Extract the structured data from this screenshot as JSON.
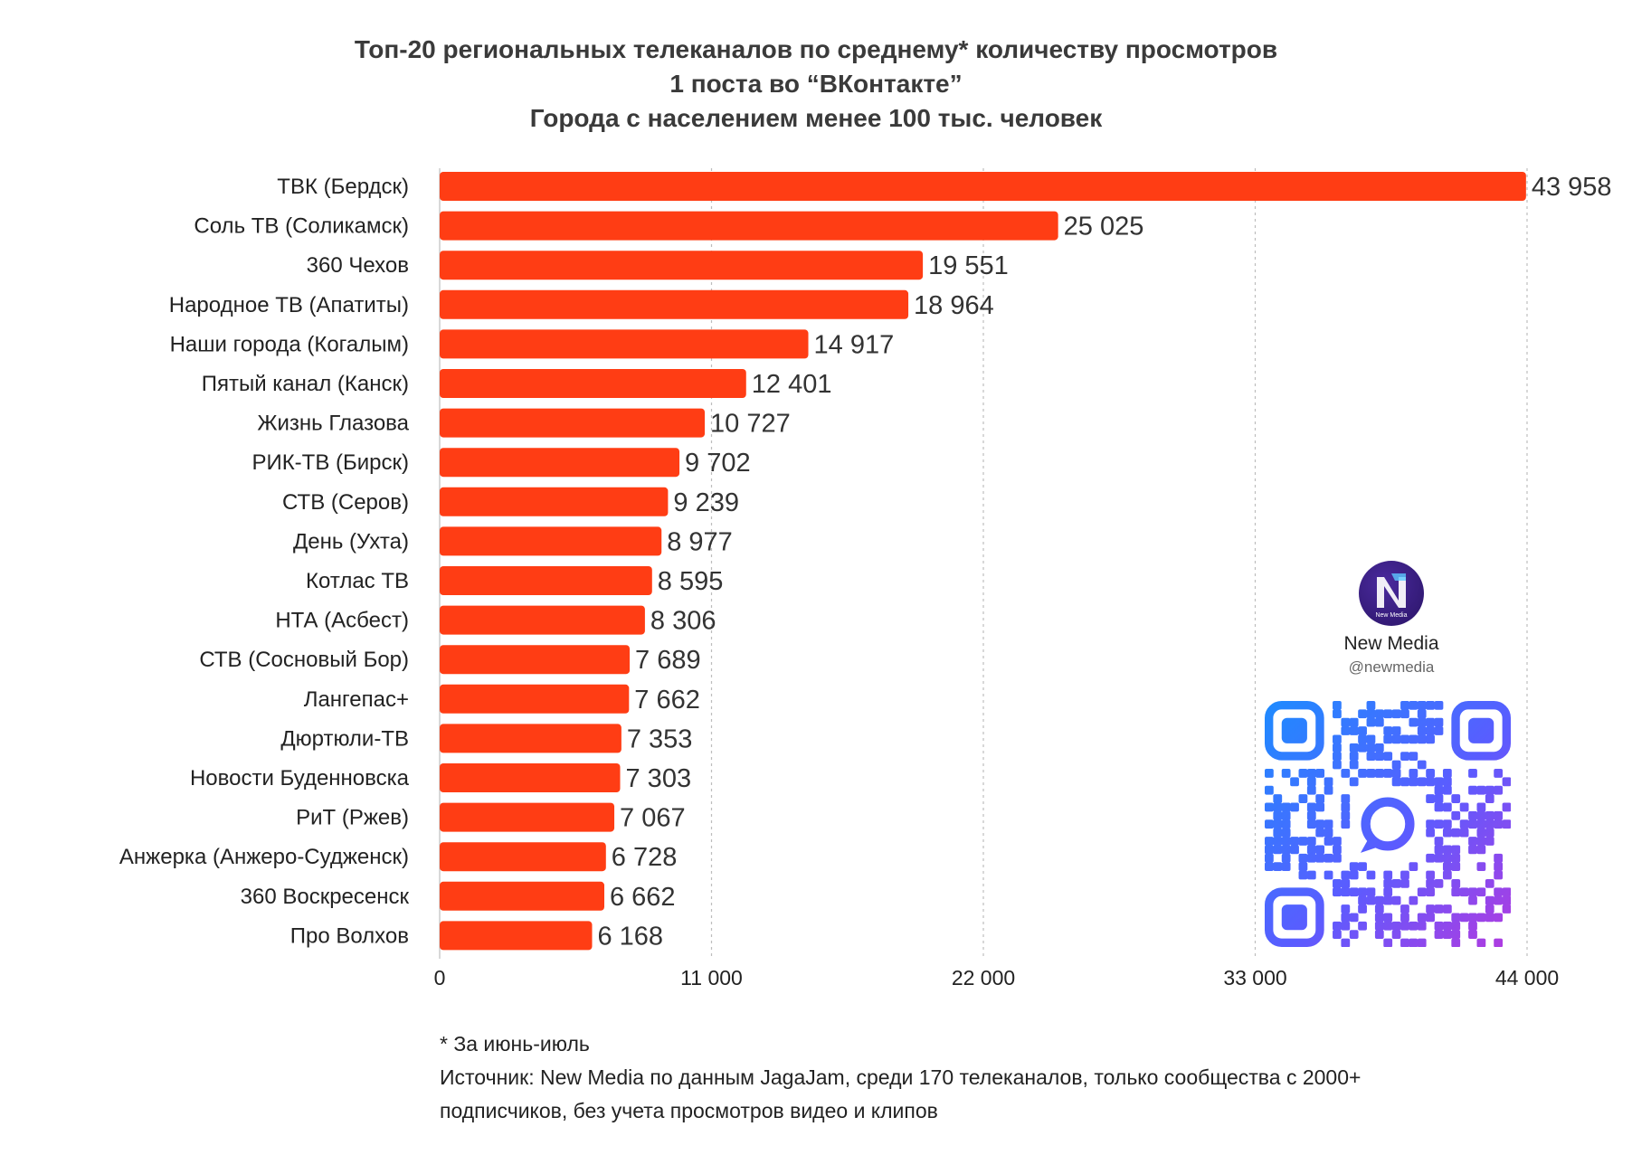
{
  "title": {
    "line1": "Топ-20 региональных телеканалов по среднему* количеству просмотров",
    "line2": "1 поста во “ВКонтакте”",
    "line3": "Города с населением менее 100 тыс. человек"
  },
  "chart_data": {
    "type": "bar",
    "orientation": "horizontal",
    "categories": [
      "ТВК (Бердск)",
      "Соль ТВ (Соликамск)",
      "360 Чехов",
      "Народное ТВ (Апатиты)",
      "Наши города (Когалым)",
      "Пятый канал (Канск)",
      "Жизнь Глазова",
      "РИК-ТВ (Бирск)",
      "СТВ (Серов)",
      "День (Ухта)",
      "Котлас ТВ",
      "НТА (Асбест)",
      "СТВ (Сосновый Бор)",
      "Лангепас+",
      "Дюртюли-ТВ",
      "Новости Буденновска",
      "РиТ (Ржев)",
      "Анжерка (Анжеро-Судженск)",
      "360 Воскресенск",
      "Про Волхов"
    ],
    "values": [
      43958,
      25025,
      19551,
      18964,
      14917,
      12401,
      10727,
      9702,
      9239,
      8977,
      8595,
      8306,
      7689,
      7662,
      7353,
      7303,
      7067,
      6728,
      6662,
      6168
    ],
    "value_labels": [
      "43 958",
      "25 025",
      "19 551",
      "18 964",
      "14 917",
      "12 401",
      "10 727",
      "9 702",
      "9 239",
      "8 977",
      "8 595",
      "8 306",
      "7 689",
      "7 662",
      "7 353",
      "7 303",
      "7 067",
      "6 728",
      "6 662",
      "6 168"
    ],
    "xlim": [
      0,
      44000
    ],
    "xticks": [
      0,
      11000,
      22000,
      33000,
      44000
    ],
    "xtick_labels": [
      "0",
      "11 000",
      "22 000",
      "33 000",
      "44 000"
    ],
    "grid": "vertical dashed",
    "bar_color": "#ff3d14"
  },
  "brand": {
    "name": "New Media",
    "handle": "@newmedia",
    "logo_text": "New Media"
  },
  "notes": {
    "footnote": "* За июнь-июль",
    "source_line1": "Источник: New Media по данным JagaJam, среди 170 телеканалов, только сообщества с 2000+",
    "source_line2": "подписчиков, без учета просмотров видео и клипов"
  }
}
